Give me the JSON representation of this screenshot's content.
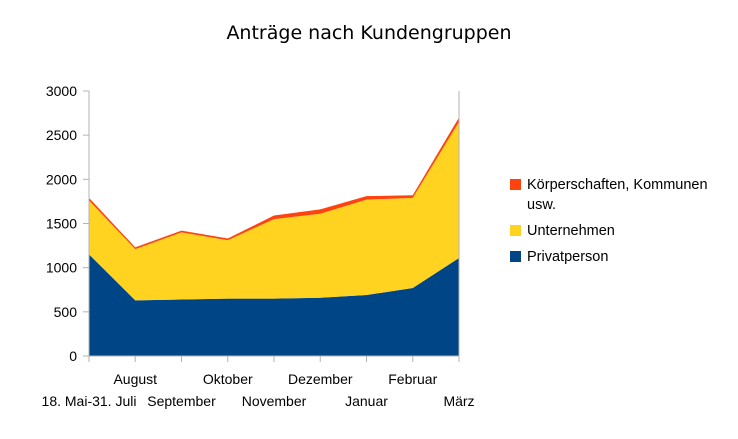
{
  "chart_data": {
    "type": "area",
    "stacked": true,
    "title": "Anträge nach Kundengruppen",
    "categories": [
      "18. Mai-31. Juli",
      "August",
      "September",
      "Oktober",
      "November",
      "Dezember",
      "Januar",
      "Februar",
      "März"
    ],
    "ylim": [
      0,
      3000
    ],
    "yticks": [
      0,
      500,
      1000,
      1500,
      2000,
      2500,
      3000
    ],
    "grid": false,
    "legend_position": "right",
    "series": [
      {
        "name": "Privatperson",
        "color": "#004586",
        "values": [
          1150,
          630,
          640,
          650,
          650,
          660,
          690,
          770,
          1110
        ]
      },
      {
        "name": "Unternehmen",
        "color": "#ffd320",
        "values": [
          610,
          580,
          760,
          660,
          900,
          950,
          1080,
          1020,
          1540
        ]
      },
      {
        "name": "Körperschaften, Kommunen usw.",
        "color": "#ff420e",
        "values": [
          30,
          20,
          20,
          20,
          40,
          50,
          40,
          30,
          50
        ]
      }
    ],
    "legend": [
      {
        "label": "Körperschaften, Kommunen usw.",
        "color": "#ff420e"
      },
      {
        "label": "Unternehmen",
        "color": "#ffd320"
      },
      {
        "label": "Privatperson",
        "color": "#004586"
      }
    ]
  }
}
